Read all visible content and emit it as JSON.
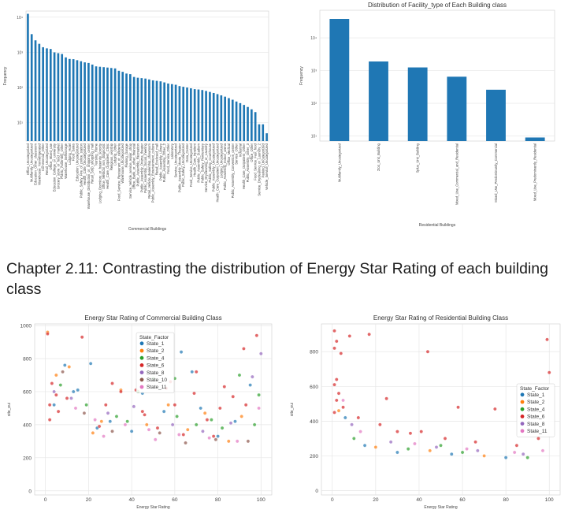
{
  "heading": "Chapter 2.11: Contrasting the distribution of Energy Star Rating of each building class",
  "colors": {
    "bar": "#1f77b4",
    "grid": "#e6e6e6",
    "states": {
      "State_1": "#1f77b4",
      "State_2": "#ff7f0e",
      "State_4": "#2ca02c",
      "State_6": "#d62728",
      "State_8": "#9467bd",
      "State_10": "#8c564b",
      "State_11": "#e377c2"
    }
  },
  "chart_data": [
    {
      "id": "commercial_facility_types",
      "type": "bar",
      "title": "",
      "xlabel": "Commercial Buildings",
      "ylabel": "Frequency",
      "yscale": "log",
      "ylim": [
        3,
        15000
      ],
      "yticks": [
        10,
        100,
        1000,
        10000
      ],
      "ytick_labels": [
        "10¹",
        "10²",
        "10³",
        "10⁴"
      ],
      "categories": [
        "Office_Uncategorized",
        "Multifamily_Uncategorized",
        "Education_Other_classroom",
        "Warehouse_Nonrefrigerated",
        "Commercial_Other",
        "Retail_Uncategorized",
        "Office_Mixed_use",
        "Education_College_or_university",
        "Grocery_store_or_food_market",
        "Public_Assembly_Other",
        "Warehouse_Selfstorage",
        "Lodging_Hotel",
        "Food_Sales",
        "Education_Uncategorized",
        "Public_Safety_Fire_or_police_station",
        "Health_Care_Uncategorized",
        "Warehouse_Distribution_or_Shipping_center",
        "Retail_Strip_shopping_mall",
        "Nursing_Home",
        "Lodging_Dormitory_or_fraternity_sorority",
        "Office_Medical_non_diagnostic",
        "Health_Care_Outpatient_Clinic",
        "Religious_worship",
        "Lodging_Other",
        "Food_Service_Restaurant_or_cafeteria",
        "Warehouse_Uncategorized",
        "Parking_Garage",
        "Service_Vehicle_service_repair_shop",
        "Office_Bank_or_other_financial",
        "Public_Assembly_Recreation",
        "Public_Assembly_Drama_theater",
        "Public_Assembly_Social_meeting",
        "Retail_Vehicle_dealership_showroom",
        "Public_Assembly_Entertainment_culture",
        "Retail_Enclosed_mall",
        "Public_Assembly_Library",
        "Public_Assembly_Other_2",
        "Food_Service_Other",
        "Laboratory",
        "Service_Uncategorized",
        "Public_Assembly_Movie_Theater",
        "Public_Safety_Uncategorized",
        "Data_Center",
        "Food_Service_Uncategorized",
        "Health_Care_Inpatient",
        "Public_Assembly_Stadium",
        "Public_Safety_Penitentiary",
        "Service_Drycleaning_or_Laundry",
        "Public_Safety_Courthouse",
        "Public_Assembly_Uncategorized",
        "Health_Care_Outpatient_Uncategorized",
        "Lodging_Uncategorized",
        "Public_Assembly_Indoor_arena",
        "Office_Medical",
        "Public_Assembly_Convention_center",
        "Service_Other",
        "Industrial",
        "Health_Care_Outpatient_Other",
        "Public_Assembly_Other_3",
        "Office_Other",
        "Food_Service_Fast_food",
        "Service_Drycleaning_or_Laundry_2",
        "Parking_Uncategorized",
        "Vehicle_Service_Uncategorized"
      ],
      "values": [
        12500,
        3300,
        2200,
        1750,
        1400,
        1300,
        1250,
        1000,
        950,
        900,
        720,
        650,
        640,
        600,
        560,
        520,
        500,
        450,
        400,
        390,
        380,
        370,
        360,
        350,
        300,
        280,
        250,
        240,
        200,
        190,
        185,
        180,
        170,
        160,
        155,
        150,
        140,
        130,
        125,
        120,
        110,
        105,
        100,
        95,
        90,
        88,
        85,
        80,
        75,
        70,
        65,
        60,
        55,
        50,
        45,
        40,
        36,
        32,
        28,
        24,
        20,
        9,
        9,
        5
      ]
    },
    {
      "id": "residential_facility_types",
      "type": "bar",
      "title": "Distribution of Facility_type of Each Building class",
      "xlabel": "Residential Buildings",
      "ylabel": "Frequency",
      "yscale": "log",
      "ylim": [
        7,
        70000
      ],
      "yticks": [
        10,
        100,
        1000,
        10000
      ],
      "ytick_labels": [
        "10¹",
        "10²",
        "10³",
        "10⁴"
      ],
      "categories": [
        "Multifamily_Uncategorized",
        "2to4_Unit_Building",
        "5plus_Unit_Building",
        "Mixed_Use_Commercial_and_Residential",
        "Mixed_Use_Predominantly_Commercial",
        "Mixed_Use_Predominantly_Residential"
      ],
      "values": [
        38000,
        1900,
        1250,
        650,
        260,
        9
      ]
    },
    {
      "id": "commercial_energy_star",
      "type": "scatter",
      "title": "Energy Star Rating of Commercial Building Class",
      "xlabel": "Energy Star Rating",
      "ylabel": "site_eui",
      "xlim": [
        -5,
        105
      ],
      "ylim": [
        -25,
        1010
      ],
      "xticks": [
        0,
        20,
        40,
        60,
        80,
        100
      ],
      "yticks": [
        0,
        200,
        400,
        600,
        800,
        1000
      ],
      "legend": {
        "title": "State_Factor",
        "placement": "upper-center",
        "entries": [
          "State_1",
          "State_2",
          "State_4",
          "State_6",
          "State_8",
          "State_10",
          "State_11"
        ]
      },
      "series": [
        {
          "name": "State_1",
          "points": [
            [
              9,
              760
            ],
            [
              15,
              610
            ],
            [
              21,
              770
            ],
            [
              63,
              840
            ],
            [
              13,
              600
            ],
            [
              68,
              720
            ],
            [
              45,
              590
            ],
            [
              95,
              640
            ],
            [
              72,
              500
            ],
            [
              30,
              420
            ],
            [
              88,
              420
            ],
            [
              55,
              480
            ],
            [
              4,
              520
            ],
            [
              24,
              380
            ],
            [
              40,
              360
            ],
            [
              80,
              330
            ]
          ]
        },
        {
          "name": "State_2",
          "points": [
            [
              1,
              960
            ],
            [
              5,
              700
            ],
            [
              11,
              750
            ],
            [
              26,
              420
            ],
            [
              35,
              610
            ],
            [
              57,
              520
            ],
            [
              74,
              470
            ],
            [
              91,
              450
            ],
            [
              22,
              350
            ],
            [
              47,
              400
            ],
            [
              66,
              370
            ],
            [
              85,
              300
            ]
          ]
        },
        {
          "name": "State_4",
          "points": [
            [
              7,
              640
            ],
            [
              19,
              520
            ],
            [
              33,
              450
            ],
            [
              50,
              680
            ],
            [
              61,
              450
            ],
            [
              77,
              430
            ],
            [
              90,
              700
            ],
            [
              43,
              600
            ],
            [
              60,
              680
            ],
            [
              99,
              580
            ],
            [
              38,
              420
            ],
            [
              70,
              400
            ],
            [
              82,
              380
            ],
            [
              97,
              400
            ]
          ]
        },
        {
          "name": "State_6",
          "points": [
            [
              1,
              950
            ],
            [
              3,
              650
            ],
            [
              5,
              580
            ],
            [
              2,
              520
            ],
            [
              6,
              480
            ],
            [
              2,
              430
            ],
            [
              17,
              930
            ],
            [
              35,
              600
            ],
            [
              42,
              610
            ],
            [
              46,
              460
            ],
            [
              60,
              520
            ],
            [
              70,
              720
            ],
            [
              83,
              630
            ],
            [
              92,
              860
            ],
            [
              98,
              940
            ],
            [
              28,
              520
            ],
            [
              52,
              380
            ],
            [
              64,
              340
            ],
            [
              78,
              330
            ],
            [
              56,
              620
            ],
            [
              10,
              560
            ],
            [
              25,
              390
            ],
            [
              31,
              650
            ],
            [
              69,
              590
            ],
            [
              75,
              430
            ],
            [
              87,
              570
            ],
            [
              93,
              520
            ],
            [
              58,
              660
            ],
            [
              45,
              480
            ],
            [
              81,
              500
            ]
          ]
        },
        {
          "name": "State_8",
          "points": [
            [
              4,
              600
            ],
            [
              12,
              560
            ],
            [
              29,
              470
            ],
            [
              41,
              510
            ],
            [
              59,
              400
            ],
            [
              73,
              360
            ],
            [
              86,
              410
            ],
            [
              100,
              830
            ],
            [
              96,
              690
            ]
          ]
        },
        {
          "name": "State_10",
          "points": [
            [
              8,
              720
            ],
            [
              18,
              470
            ],
            [
              31,
              360
            ],
            [
              53,
              350
            ],
            [
              79,
              310
            ],
            [
              94,
              300
            ],
            [
              65,
              290
            ]
          ]
        },
        {
          "name": "State_11",
          "points": [
            [
              14,
              500
            ],
            [
              23,
              430
            ],
            [
              37,
              400
            ],
            [
              48,
              370
            ],
            [
              62,
              340
            ],
            [
              76,
              320
            ],
            [
              89,
              300
            ],
            [
              99,
              500
            ],
            [
              27,
              330
            ],
            [
              51,
              310
            ]
          ]
        }
      ]
    },
    {
      "id": "residential_energy_star",
      "type": "scatter",
      "title": "Energy Star Rating of Residential Building Class",
      "xlabel": "Energy Star Rating",
      "ylabel": "site_eui",
      "xlim": [
        -5,
        105
      ],
      "ylim": [
        -25,
        960
      ],
      "xticks": [
        0,
        20,
        40,
        60,
        80,
        100
      ],
      "yticks": [
        0,
        200,
        400,
        600,
        800
      ],
      "legend": {
        "title": "State_Factor",
        "placement": "center-right",
        "entries": [
          "State_1",
          "State_2",
          "State_4",
          "State_6",
          "State_8",
          "State_11"
        ]
      },
      "series": [
        {
          "name": "State_1",
          "points": [
            [
              6,
              420
            ],
            [
              15,
              260
            ],
            [
              30,
              220
            ],
            [
              55,
              210
            ],
            [
              80,
              190
            ]
          ]
        },
        {
          "name": "State_2",
          "points": [
            [
              3,
              460
            ],
            [
              20,
              250
            ],
            [
              45,
              230
            ],
            [
              70,
              200
            ]
          ]
        },
        {
          "name": "State_4",
          "points": [
            [
              10,
              300
            ],
            [
              35,
              240
            ],
            [
              60,
              220
            ],
            [
              90,
              190
            ],
            [
              50,
              260
            ]
          ]
        },
        {
          "name": "State_6",
          "points": [
            [
              1,
              920
            ],
            [
              2,
              860
            ],
            [
              1,
              820
            ],
            [
              4,
              790
            ],
            [
              2,
              640
            ],
            [
              1,
              610
            ],
            [
              3,
              560
            ],
            [
              2,
              520
            ],
            [
              5,
              480
            ],
            [
              1,
              450
            ],
            [
              8,
              890
            ],
            [
              17,
              900
            ],
            [
              25,
              530
            ],
            [
              44,
              800
            ],
            [
              58,
              480
            ],
            [
              75,
              470
            ],
            [
              99,
              870
            ],
            [
              100,
              680
            ],
            [
              12,
              420
            ],
            [
              36,
              330
            ],
            [
              41,
              340
            ],
            [
              52,
              300
            ],
            [
              66,
              280
            ],
            [
              85,
              260
            ],
            [
              95,
              300
            ],
            [
              22,
              380
            ],
            [
              30,
              340
            ]
          ]
        },
        {
          "name": "State_8",
          "points": [
            [
              9,
              380
            ],
            [
              27,
              280
            ],
            [
              48,
              250
            ],
            [
              67,
              230
            ],
            [
              88,
              210
            ]
          ]
        },
        {
          "name": "State_11",
          "points": [
            [
              5,
              520
            ],
            [
              13,
              340
            ],
            [
              38,
              270
            ],
            [
              62,
              240
            ],
            [
              84,
              220
            ],
            [
              97,
              230
            ]
          ]
        }
      ]
    }
  ]
}
